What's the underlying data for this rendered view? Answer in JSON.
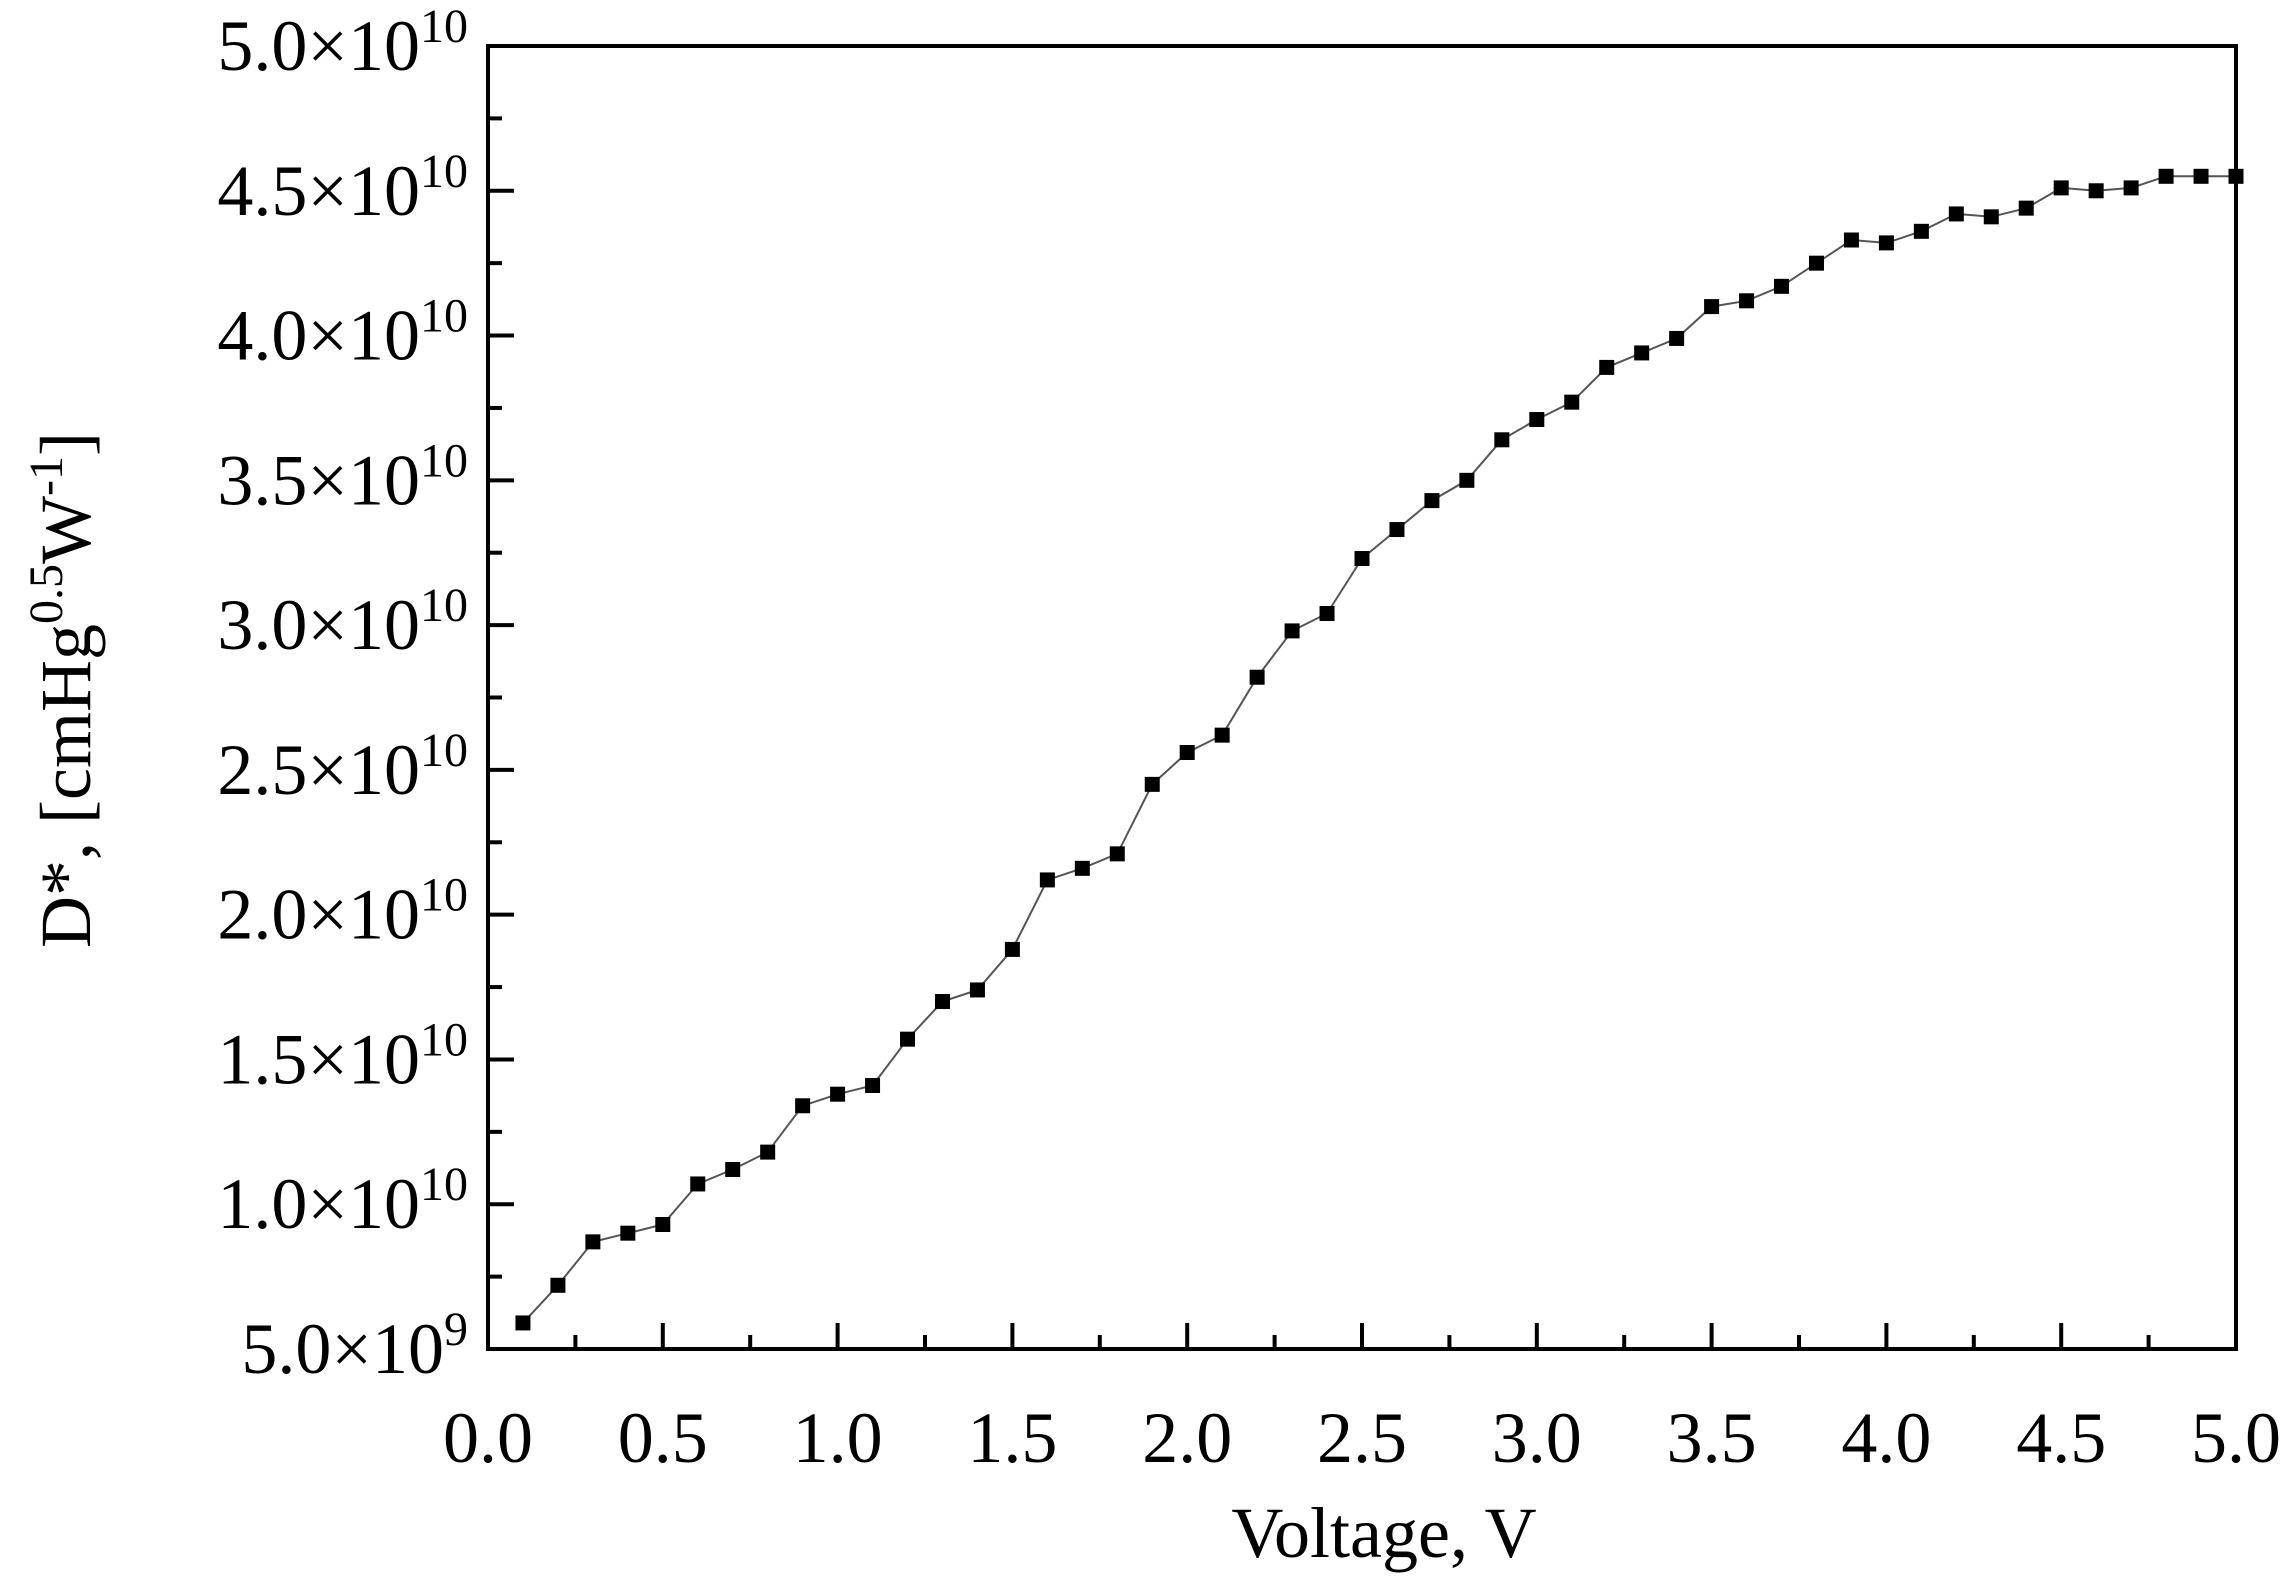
{
  "chart_data": {
    "type": "scatter",
    "title": "",
    "xlabel": "Voltage, V",
    "ylabel": {
      "main": "D*, [cmHg",
      "sup1": "0.5",
      "mid": "W",
      "sup2": "-1",
      "end": "]"
    },
    "xlim": [
      0.0,
      5.0
    ],
    "ylim": [
      5000000000.0,
      50000000000.0
    ],
    "grid": false,
    "x_ticks": [
      "0.0",
      "0.5",
      "1.0",
      "1.5",
      "2.0",
      "2.5",
      "3.0",
      "3.5",
      "4.0",
      "4.5",
      "5.0"
    ],
    "y_ticks": [
      {
        "mantissa": "5.0",
        "base": "10",
        "exp": "9"
      },
      {
        "mantissa": "1.0",
        "base": "10",
        "exp": "10"
      },
      {
        "mantissa": "1.5",
        "base": "10",
        "exp": "10"
      },
      {
        "mantissa": "2.0",
        "base": "10",
        "exp": "10"
      },
      {
        "mantissa": "2.5",
        "base": "10",
        "exp": "10"
      },
      {
        "mantissa": "3.0",
        "base": "10",
        "exp": "10"
      },
      {
        "mantissa": "3.5",
        "base": "10",
        "exp": "10"
      },
      {
        "mantissa": "4.0",
        "base": "10",
        "exp": "10"
      },
      {
        "mantissa": "4.5",
        "base": "10",
        "exp": "10"
      },
      {
        "mantissa": "5.0",
        "base": "10",
        "exp": "10"
      }
    ],
    "y_tick_values": [
      5000000000.0,
      10000000000.0,
      15000000000.0,
      20000000000.0,
      25000000000.0,
      30000000000.0,
      35000000000.0,
      40000000000.0,
      45000000000.0,
      50000000000.0
    ],
    "times_symbol": "×",
    "series": [
      {
        "color": "#000000",
        "marker": "square",
        "line_color": "#555555",
        "x": [
          0.1,
          0.2,
          0.3,
          0.4,
          0.5,
          0.6,
          0.7,
          0.8,
          0.9,
          1.0,
          1.1,
          1.2,
          1.3,
          1.4,
          1.5,
          1.6,
          1.7,
          1.8,
          1.9,
          2.0,
          2.1,
          2.2,
          2.3,
          2.4,
          2.5,
          2.6,
          2.7,
          2.8,
          2.9,
          3.0,
          3.1,
          3.2,
          3.3,
          3.4,
          3.5,
          3.6,
          3.7,
          3.8,
          3.9,
          4.0,
          4.1,
          4.2,
          4.3,
          4.4,
          4.5,
          4.6,
          4.7,
          4.8,
          4.9,
          5.0
        ],
        "y": [
          5900000000.0,
          7200000000.0,
          8700000000.0,
          9000000000.0,
          9300000000.0,
          10700000000.0,
          11200000000.0,
          11800000000.0,
          13400000000.0,
          13800000000.0,
          14100000000.0,
          15700000000.0,
          17000000000.0,
          17400000000.0,
          18800000000.0,
          21200000000.0,
          21600000000.0,
          22100000000.0,
          24500000000.0,
          25600000000.0,
          26200000000.0,
          28200000000.0,
          29800000000.0,
          30400000000.0,
          32300000000.0,
          33300000000.0,
          34300000000.0,
          35000000000.0,
          36400000000.0,
          37100000000.0,
          37700000000.0,
          38900000000.0,
          39400000000.0,
          39900000000.0,
          41000000000.0,
          41200000000.0,
          41700000000.0,
          42500000000.0,
          43300000000.0,
          43200000000.0,
          43600000000.0,
          44200000000.0,
          44100000000.0,
          44400000000.0,
          45100000000.0,
          45000000000.0,
          45100000000.0,
          45500000000.0,
          45500000000.0,
          45500000000.0
        ]
      }
    ]
  }
}
